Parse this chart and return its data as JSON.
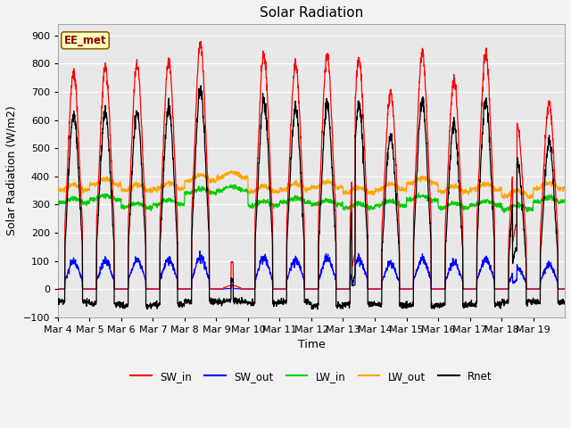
{
  "title": "Solar Radiation",
  "xlabel": "Time",
  "ylabel": "Solar Radiation (W/m2)",
  "ylim": [
    -100,
    940
  ],
  "yticks": [
    -100,
    0,
    100,
    200,
    300,
    400,
    500,
    600,
    700,
    800,
    900
  ],
  "n_days": 16,
  "annotation_text": "EE_met",
  "annotation_color": "#8B0000",
  "annotation_bg": "#FFFFC0",
  "annotation_border": "#8B6000",
  "series_colors": {
    "SW_in": "#FF0000",
    "SW_out": "#0000FF",
    "LW_in": "#00CC00",
    "LW_out": "#FFA500",
    "Rnet": "#000000"
  },
  "plot_bg": "#E8E8E8",
  "tick_date_labels": [
    "Mar 4",
    "Mar 5",
    "Mar 6",
    "Mar 7",
    "Mar 8",
    "Mar 9",
    "Mar 10",
    "Mar 11",
    "Mar 12",
    "Mar 13",
    "Mar 14",
    "Mar 15",
    "Mar 16",
    "Mar 17",
    "Mar 18",
    "Mar 19"
  ],
  "sw_peaks": [
    770,
    790,
    800,
    810,
    870,
    160,
    830,
    800,
    830,
    820,
    700,
    840,
    740,
    840,
    580,
    660
  ],
  "lw_in_base": 300,
  "lw_out_base": 360
}
